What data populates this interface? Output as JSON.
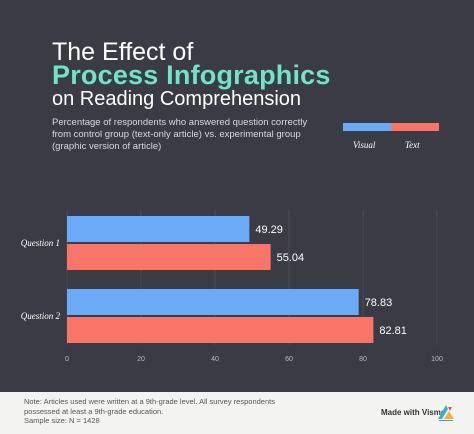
{
  "header": {
    "title_line1": "The Effect of",
    "title_line2": "Process Infographics",
    "title_line3": "on Reading Comprehension",
    "subtitle": "Percentage of respondents who answered question correctly from control group (text-only article) vs. experimental group (graphic version of article)"
  },
  "legend": {
    "items": [
      {
        "label": "Visual",
        "color": "#6aaaf7"
      },
      {
        "label": "Text",
        "color": "#f97567"
      }
    ]
  },
  "chart_data": {
    "type": "bar",
    "orientation": "horizontal",
    "categories": [
      "Question 1",
      "Question 2"
    ],
    "series": [
      {
        "name": "Visual",
        "values": [
          49.29,
          78.83
        ],
        "color": "#6aaaf7"
      },
      {
        "name": "Text",
        "values": [
          55.04,
          82.81
        ],
        "color": "#f97567"
      }
    ],
    "data_labels": [
      "49.29",
      "55.04",
      "78.83",
      "82.81"
    ],
    "xlim": [
      0,
      100
    ],
    "xticks": [
      "0",
      "20",
      "40",
      "60",
      "80",
      "100"
    ],
    "grid": true,
    "legend_position": "top-right"
  },
  "footer": {
    "note_line1": "Note: Articles used were written at a 9th-grade level. All survey respondents",
    "note_line2": "possessed at least a 9th-grade education.",
    "note_line3": "Sample size: N = 1428",
    "brand": "Made with Visme"
  }
}
